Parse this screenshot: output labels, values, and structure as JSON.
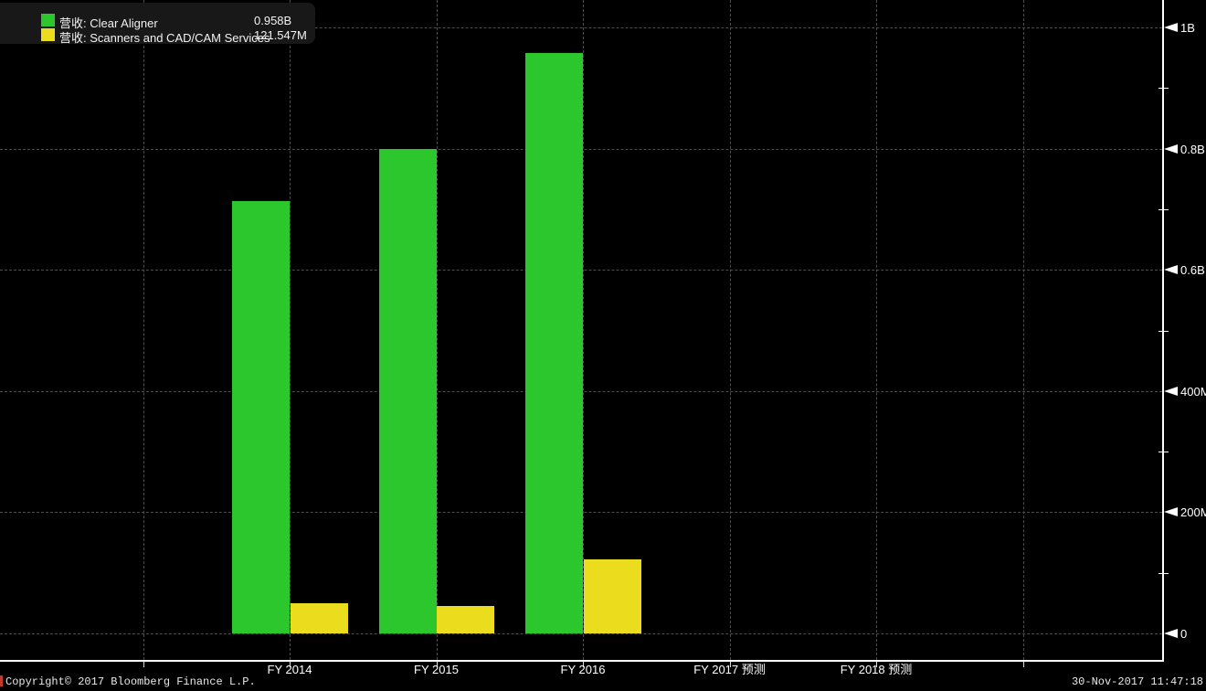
{
  "meta": {
    "source": "Copyright© 2017 Bloomberg Finance L.P.",
    "timestamp": "30-Nov-2017 11:47:18"
  },
  "colors": {
    "background": "#000000",
    "series_green": "#2cc72c",
    "series_yellow": "#ebdc1e",
    "gridline": "#4d4d4d",
    "axis": "#ffffff",
    "legend_background": "#181818"
  },
  "legend": {
    "items": [
      {
        "label": "营收: Clear Aligner",
        "value": "0.958B",
        "color": "#2cc72c"
      },
      {
        "label": "营收: Scanners and CAD/CAM Services",
        "value": "121.547M",
        "color": "#ebdc1e"
      }
    ]
  },
  "chart_data": {
    "type": "bar",
    "title": "",
    "xlabel": "",
    "ylabel": "",
    "categories": [
      "FY 2014",
      "FY 2015",
      "FY 2016",
      "FY 2017 预测",
      "FY 2018 预测"
    ],
    "series": [
      {
        "name": "营收: Clear Aligner",
        "color": "#2cc72c",
        "values_M": [
          713,
          800,
          958,
          null,
          null
        ]
      },
      {
        "name": "营收: Scanners and CAD/CAM Services",
        "color": "#ebdc1e",
        "values_M": [
          50,
          45,
          121.547,
          null,
          null
        ]
      }
    ],
    "latest_values": {
      "clear_aligner": "0.958B",
      "scanners_cadcam": "121.547M"
    },
    "y_ticks": [
      {
        "value_B": 1.0,
        "label": "1B"
      },
      {
        "value_B": 0.8,
        "label": "0.8B"
      },
      {
        "value_B": 0.6,
        "label": "0.6B"
      },
      {
        "value_B": 0.4,
        "label": "400M"
      },
      {
        "value_B": 0.2,
        "label": "200M"
      },
      {
        "value_B": 0.0,
        "label": "0"
      }
    ],
    "y_minor_ticks_B": [
      0.9,
      0.7,
      0.5,
      0.3,
      0.1
    ],
    "ylim_B": [
      0,
      1.045
    ],
    "grid": "dashed",
    "legend_position": "top-left",
    "forecast_categories_without_data": [
      "FY 2017 预测",
      "FY 2018 预测"
    ]
  }
}
